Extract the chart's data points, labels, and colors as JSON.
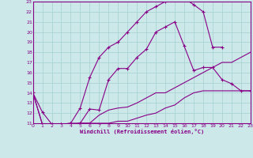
{
  "xlabel": "Windchill (Refroidissement éolien,°C)",
  "bg_color": "#cce8e8",
  "grid_color": "#aad4d4",
  "line_color": "#880088",
  "xmin": 0,
  "xmax": 23,
  "ymin": 11,
  "ymax": 23,
  "curve1_x": [
    0,
    1,
    2,
    3,
    4,
    5,
    6,
    7,
    8,
    9,
    10,
    11,
    12,
    13,
    14,
    15,
    16,
    17,
    18,
    19,
    20,
    21,
    22,
    23
  ],
  "curve1_y": [
    14.0,
    12.1,
    10.9,
    10.9,
    11.0,
    11.0,
    12.4,
    12.3,
    15.3,
    16.4,
    16.4,
    17.5,
    18.3,
    20.0,
    20.5,
    21.0,
    18.6,
    16.2,
    16.5,
    16.5,
    15.3,
    14.9,
    14.2,
    14.2
  ],
  "curve2_x": [
    0,
    1,
    2,
    3,
    4,
    5,
    6,
    7,
    8,
    9,
    10,
    11,
    12,
    13,
    14,
    15,
    16,
    17,
    18,
    19,
    20,
    21,
    22,
    23
  ],
  "curve2_y": [
    14.0,
    10.9,
    10.9,
    10.9,
    10.9,
    11.0,
    11.0,
    11.8,
    12.3,
    12.5,
    12.6,
    13.0,
    13.5,
    14.0,
    14.0,
    14.5,
    15.0,
    15.5,
    16.0,
    16.5,
    17.0,
    17.0,
    17.5,
    18.0
  ],
  "curve3_x": [
    0,
    1,
    2,
    3,
    4,
    5,
    6,
    7,
    8,
    9,
    10,
    11,
    12,
    13,
    14,
    15,
    16,
    17,
    18,
    19,
    20,
    21,
    22,
    23
  ],
  "curve3_y": [
    14.0,
    10.9,
    10.9,
    10.9,
    10.9,
    11.0,
    11.0,
    11.0,
    11.0,
    11.2,
    11.2,
    11.5,
    11.8,
    12.0,
    12.5,
    12.8,
    13.5,
    14.0,
    14.2,
    14.2,
    14.2,
    14.2,
    14.2,
    14.2
  ],
  "curve4_x": [
    2,
    3,
    4,
    5,
    6,
    7,
    8,
    9,
    10,
    11,
    12,
    13,
    14,
    15,
    16,
    17,
    18,
    19,
    20
  ],
  "curve4_y": [
    10.9,
    10.9,
    11.0,
    12.5,
    15.5,
    17.5,
    18.5,
    19.0,
    20.0,
    21.0,
    22.0,
    22.5,
    23.0,
    23.3,
    23.3,
    22.7,
    22.0,
    18.5,
    18.5
  ]
}
